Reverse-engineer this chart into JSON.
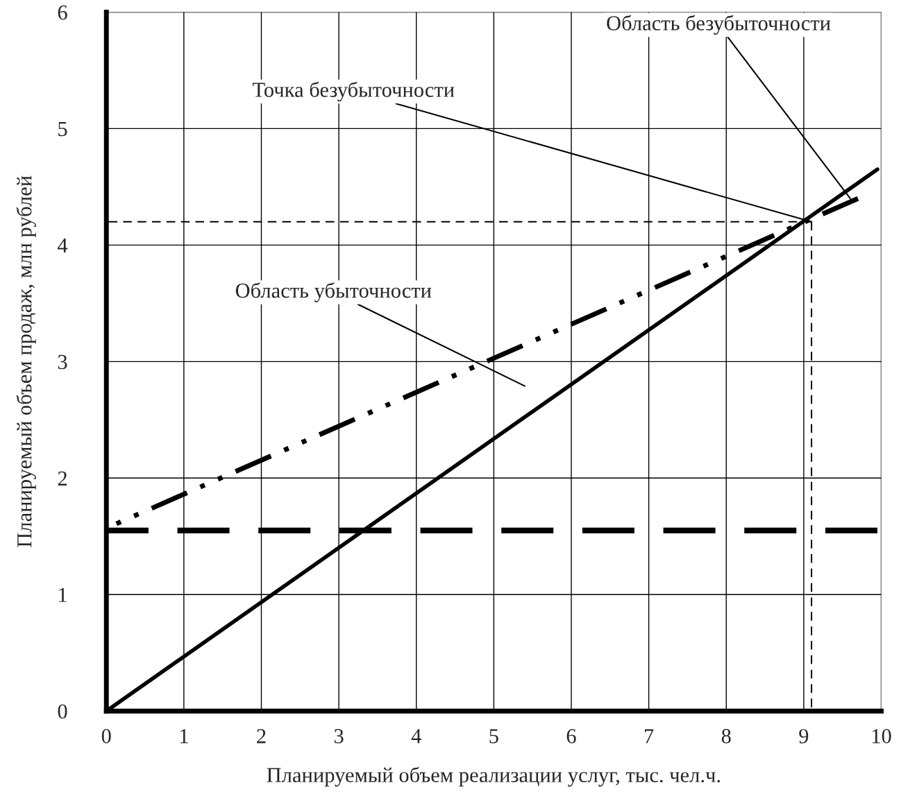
{
  "chart_data": {
    "type": "line",
    "xlabel": "Планируемый объем реализации услуг, тыс. чел.ч.",
    "ylabel": "Планируемый объем продаж, млн рублей",
    "xlim": [
      0,
      10
    ],
    "ylim": [
      0,
      6
    ],
    "xticks": [
      0,
      1,
      2,
      3,
      4,
      5,
      6,
      7,
      8,
      9,
      10
    ],
    "yticks": [
      0,
      1,
      2,
      3,
      4,
      5,
      6
    ],
    "grid": true,
    "marker": "none",
    "series": [
      {
        "color": "#000000",
        "x": [
          0,
          9.95
        ],
        "values": [
          0,
          4.65
        ],
        "line_style": "solid"
      },
      {
        "color": "#000000",
        "x": [
          0,
          9.7
        ],
        "values": [
          1.57,
          4.4
        ],
        "line_style": "dashdotdot"
      },
      {
        "color": "#000000",
        "x": [
          0,
          9.95
        ],
        "values": [
          1.55,
          1.55
        ],
        "line_style": "dashed"
      },
      {
        "color": "#000000",
        "x": [
          0,
          9.1
        ],
        "values": [
          4.2,
          4.2
        ],
        "line_style": "dashed"
      },
      {
        "color": "#000000",
        "x": [
          9.1,
          9.1
        ],
        "values": [
          0,
          4.2
        ],
        "line_style": "dashed"
      }
    ],
    "annotations": [
      {
        "text": "Область безубыточности",
        "x": 9.6,
        "y": 4.4
      },
      {
        "text": "Точка безубыточности",
        "x": 9.1,
        "y": 4.2
      },
      "Область убыточности"
    ]
  }
}
